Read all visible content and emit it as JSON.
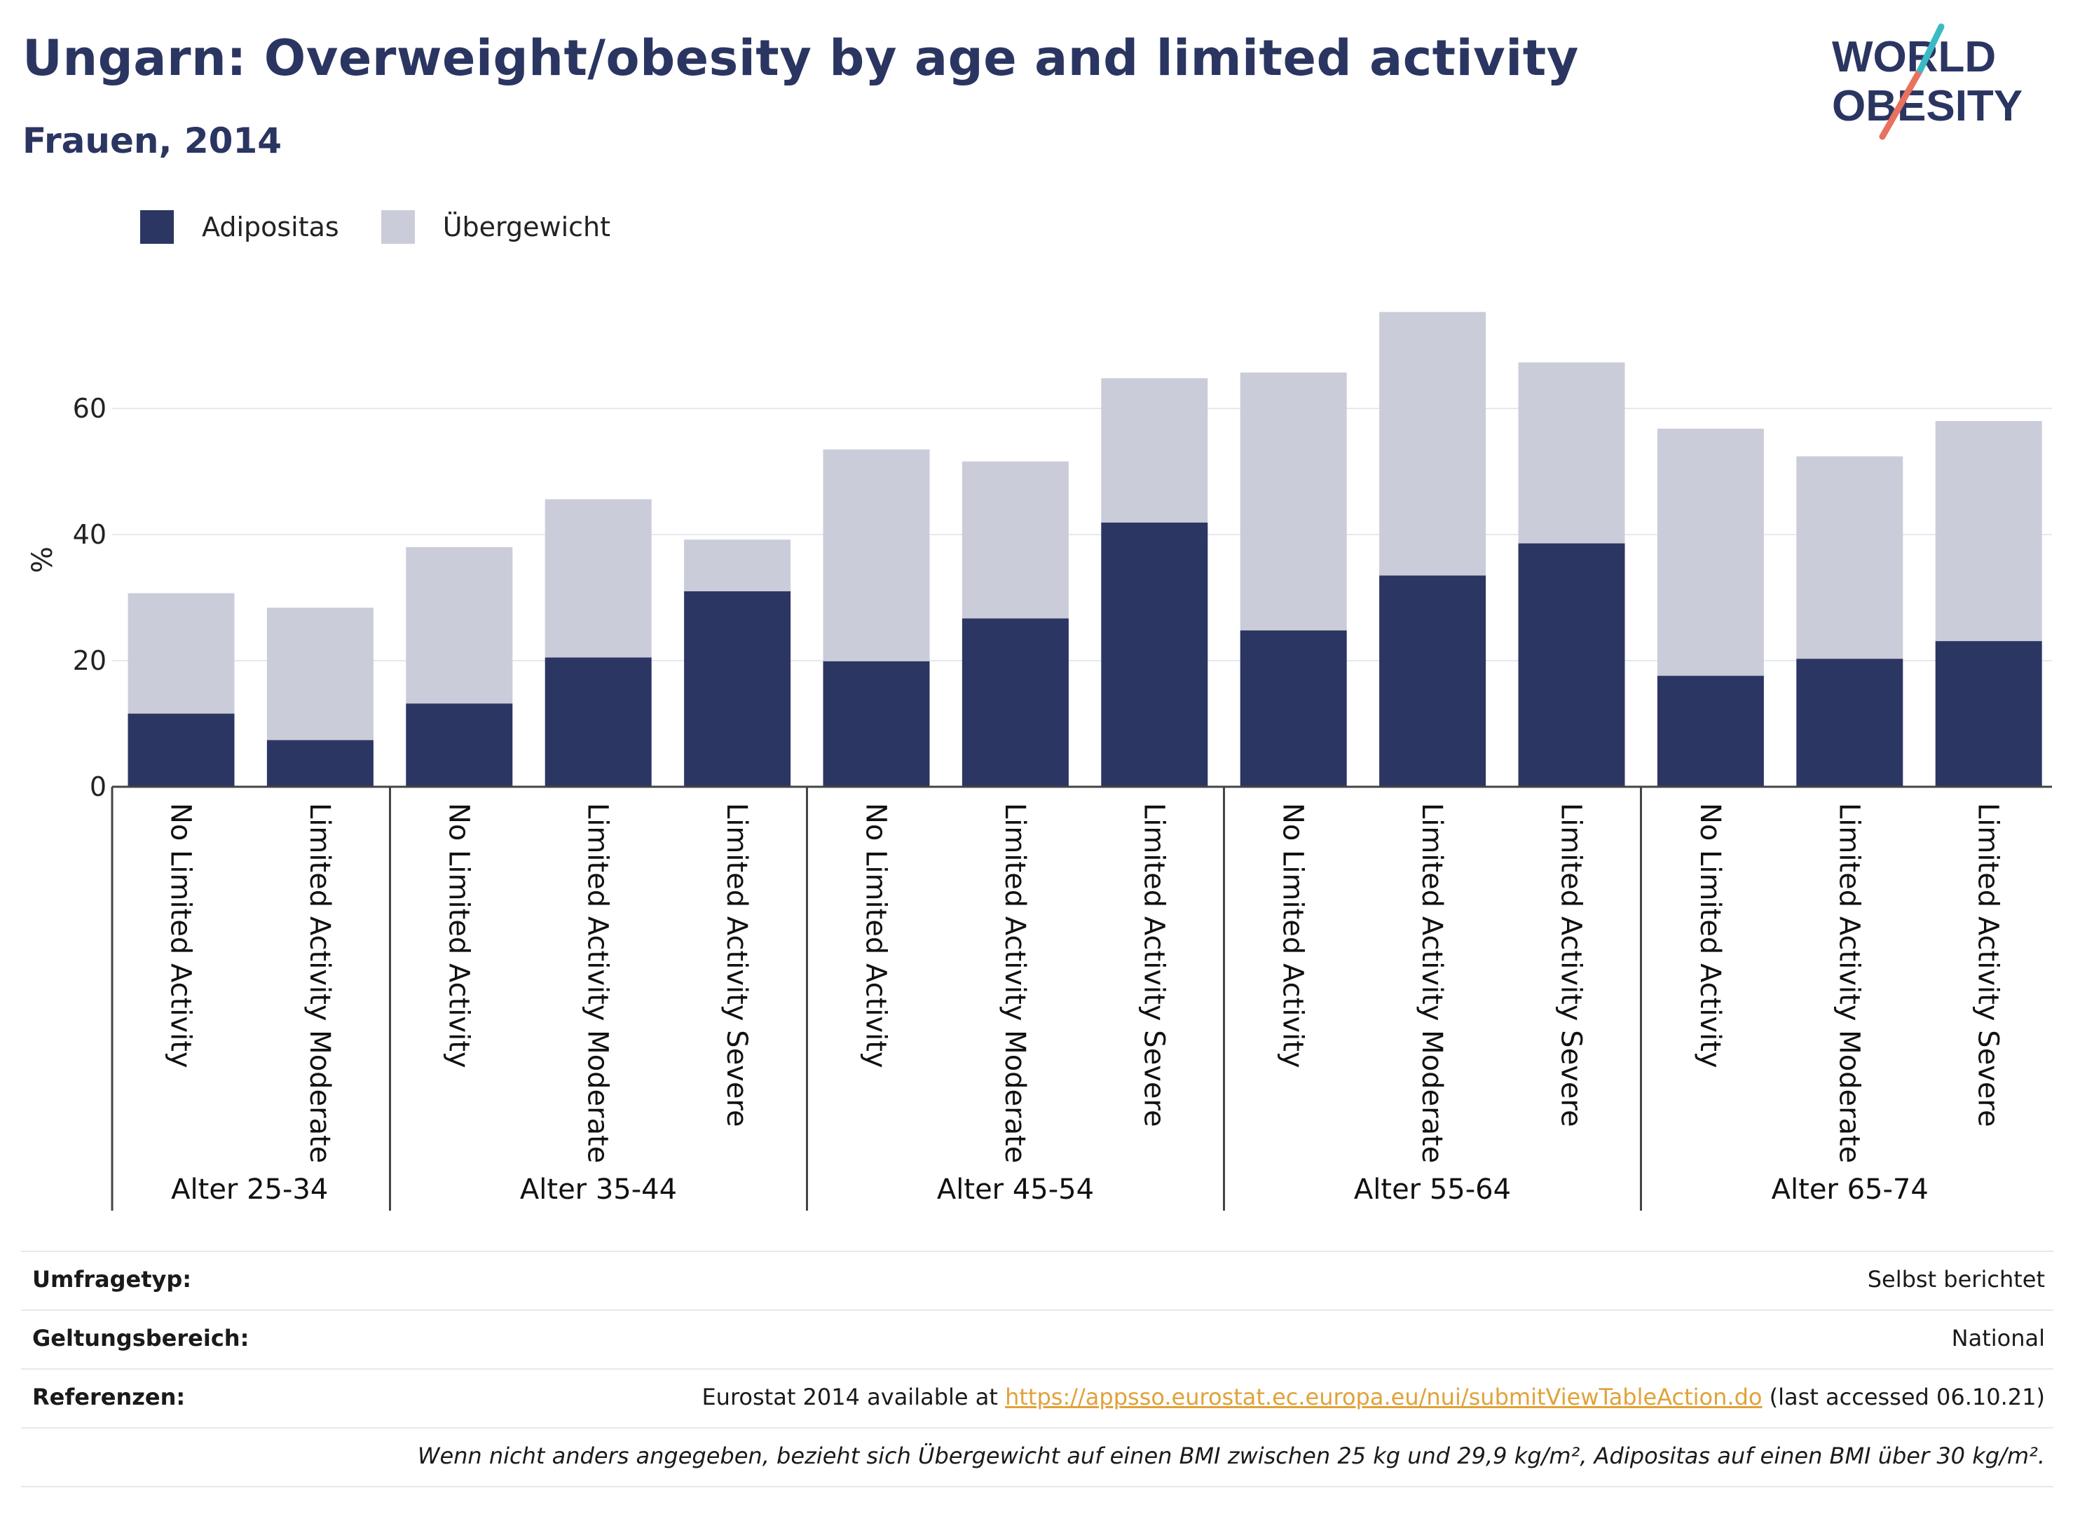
{
  "header": {
    "title": "Ungarn: Overweight/obesity by age and limited activity",
    "subtitle": "Frauen, 2014",
    "logo_text_line1": "WORLD",
    "logo_text_line2": "OBESITY"
  },
  "colors": {
    "obesity": "#2b3663",
    "overweight": "#cbccd9",
    "title": "#2a3561",
    "link": "#e0a23a",
    "logo_teal": "#3bbac4",
    "logo_coral": "#e8715f"
  },
  "chart_data": {
    "type": "bar",
    "stacked": true,
    "ylabel": "%",
    "xlabel": "",
    "ylim": [
      0,
      76
    ],
    "yticks": [
      0,
      20,
      40,
      60
    ],
    "grid": true,
    "legend_position": "top-left",
    "groups": [
      "Alter 25-34",
      "Alter 35-44",
      "Alter 45-54",
      "Alter 55-64",
      "Alter 65-74"
    ],
    "bars": [
      {
        "group": 0,
        "category": "No Limited Activity",
        "obesity": 11.6,
        "total": 30.7
      },
      {
        "group": 0,
        "category": "Limited Activity Moderate",
        "obesity": 7.4,
        "total": 28.4
      },
      {
        "group": 1,
        "category": "No Limited Activity",
        "obesity": 13.2,
        "total": 38.0
      },
      {
        "group": 1,
        "category": "Limited Activity Moderate",
        "obesity": 20.5,
        "total": 45.6
      },
      {
        "group": 1,
        "category": "Limited Activity Severe",
        "obesity": 31.0,
        "total": 39.2
      },
      {
        "group": 2,
        "category": "No Limited Activity",
        "obesity": 19.9,
        "total": 53.5
      },
      {
        "group": 2,
        "category": "Limited Activity Moderate",
        "obesity": 26.7,
        "total": 51.6
      },
      {
        "group": 2,
        "category": "Limited Activity Severe",
        "obesity": 41.9,
        "total": 64.8
      },
      {
        "group": 3,
        "category": "No Limited Activity",
        "obesity": 24.8,
        "total": 65.7
      },
      {
        "group": 3,
        "category": "Limited Activity Moderate",
        "obesity": 33.5,
        "total": 75.3
      },
      {
        "group": 3,
        "category": "Limited Activity Severe",
        "obesity": 38.6,
        "total": 67.3
      },
      {
        "group": 4,
        "category": "No Limited Activity",
        "obesity": 17.6,
        "total": 56.8
      },
      {
        "group": 4,
        "category": "Limited Activity Moderate",
        "obesity": 20.3,
        "total": 52.4
      },
      {
        "group": 4,
        "category": "Limited Activity Severe",
        "obesity": 23.1,
        "total": 58.0
      }
    ],
    "series": [
      {
        "name": "Adipositas",
        "key": "obesity"
      },
      {
        "name": "Übergewicht",
        "key": "overweight"
      }
    ]
  },
  "meta": {
    "survey_label": "Umfragetyp:",
    "survey_value": "Selbst berichtet",
    "scope_label": "Geltungsbereich:",
    "scope_value": "National",
    "ref_label": "Referenzen:",
    "ref_prefix": "Eurostat 2014 available at ",
    "ref_link": "https://appsso.eurostat.ec.europa.eu/nui/submitViewTableAction.do",
    "ref_suffix": " (last accessed 06.10.21)",
    "note": "Wenn nicht anders angegeben, bezieht sich Übergewicht auf einen BMI zwischen 25 kg und 29,9 kg/m², Adipositas auf einen BMI über 30 kg/m²."
  }
}
